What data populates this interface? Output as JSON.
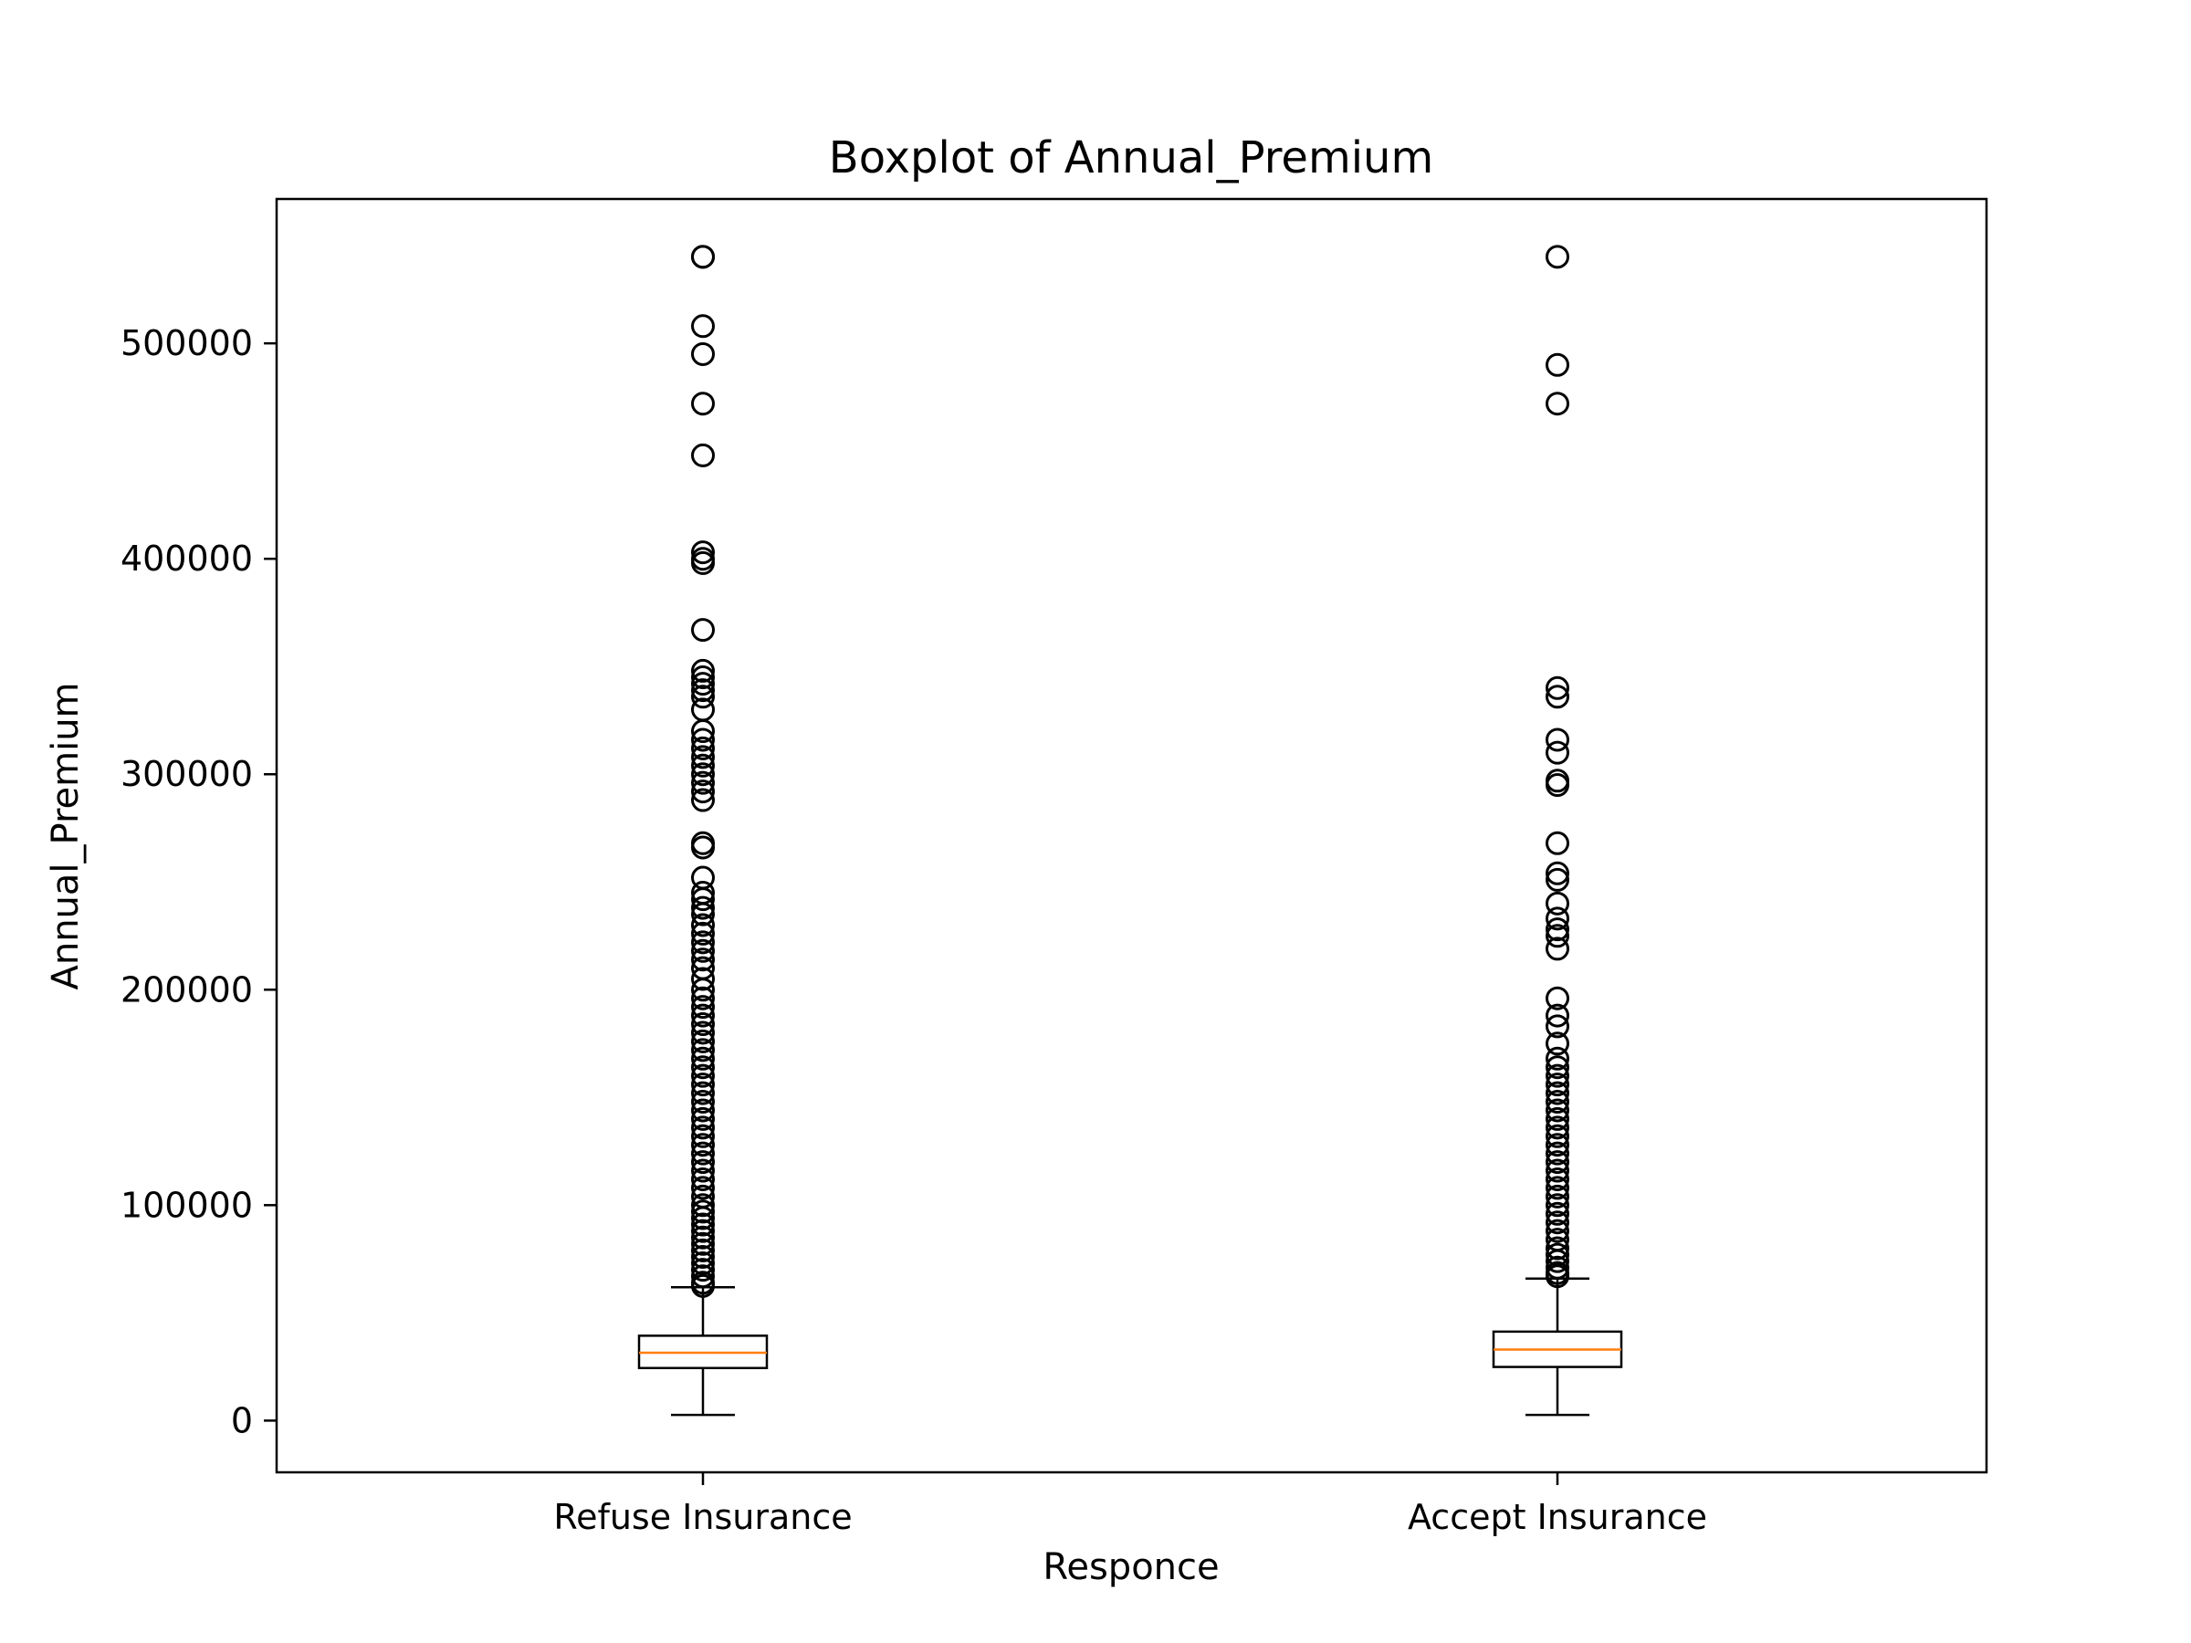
{
  "chart_data": {
    "type": "boxplot",
    "title": "Boxplot of Annual_Premium",
    "xlabel": "Responce",
    "ylabel": "Annual_Premium",
    "ylim": [
      -24000,
      567000
    ],
    "yticks": [
      0,
      100000,
      200000,
      300000,
      400000,
      500000
    ],
    "grid": false,
    "colors": {
      "box": "#000000",
      "median": "#ff7f0e",
      "flier": "#000000"
    },
    "categories": [
      "Refuse Insurance",
      "Accept Insurance"
    ],
    "boxes": [
      {
        "category": "Refuse Insurance",
        "whisker_low": 2630,
        "q1": 24400,
        "median": 31500,
        "q3": 39400,
        "whisker_high": 61900,
        "outliers": [
          540165,
          540165,
          508000,
          495000,
          472000,
          448000,
          403000,
          400000,
          398000,
          367000,
          348000,
          345000,
          342000,
          339000,
          336000,
          330000,
          320000,
          316000,
          312000,
          308000,
          304000,
          300000,
          296000,
          292000,
          288000,
          268000,
          266000,
          252000,
          245000,
          242000,
          238000,
          235000,
          230000,
          226000,
          222000,
          218000,
          214000,
          210000,
          205000,
          200000,
          196000,
          192000,
          188000,
          184000,
          180000,
          176000,
          172000,
          168000,
          164000,
          160000,
          156000,
          152000,
          148000,
          144000,
          140000,
          136000,
          132000,
          128000,
          124000,
          120000,
          116000,
          112000,
          108000,
          104000,
          100000,
          97000,
          94000,
          91000,
          88000,
          85000,
          82000,
          79000,
          76000,
          73000,
          70000,
          67000,
          64000,
          62500
        ]
      },
      {
        "category": "Accept Insurance",
        "whisker_low": 2630,
        "q1": 24900,
        "median": 33000,
        "q3": 41300,
        "whisker_high": 65900,
        "outliers": [
          540165,
          490000,
          472000,
          340000,
          336000,
          316000,
          310000,
          297000,
          295000,
          268000,
          254000,
          251000,
          240000,
          233000,
          228000,
          225000,
          219000,
          196000,
          188000,
          183000,
          175000,
          168000,
          164000,
          160000,
          156000,
          152000,
          148000,
          144000,
          140000,
          136000,
          132000,
          128000,
          124000,
          120000,
          116000,
          112000,
          108000,
          104000,
          100000,
          96000,
          92000,
          88000,
          84000,
          80000,
          77000,
          74000,
          71000,
          68500,
          67000
        ]
      }
    ]
  }
}
